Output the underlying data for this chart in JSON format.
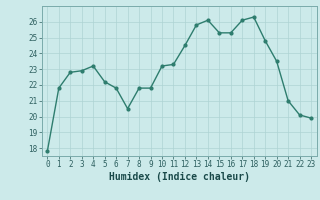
{
  "x": [
    0,
    1,
    2,
    3,
    4,
    5,
    6,
    7,
    8,
    9,
    10,
    11,
    12,
    13,
    14,
    15,
    16,
    17,
    18,
    19,
    20,
    21,
    22,
    23
  ],
  "y": [
    17.8,
    21.8,
    22.8,
    22.9,
    23.2,
    22.2,
    21.8,
    20.5,
    21.8,
    21.8,
    23.2,
    23.3,
    24.5,
    25.8,
    26.1,
    25.3,
    25.3,
    26.1,
    26.3,
    24.8,
    23.5,
    21.0,
    20.1,
    19.9
  ],
  "line_color": "#2e7d6e",
  "marker": "o",
  "marker_size": 2.0,
  "line_width": 1.0,
  "bg_color": "#cceaea",
  "grid_color": "#aed4d4",
  "xlabel": "Humidex (Indice chaleur)",
  "ylim": [
    17.5,
    27.0
  ],
  "xlim": [
    -0.5,
    23.5
  ],
  "yticks": [
    18,
    19,
    20,
    21,
    22,
    23,
    24,
    25,
    26
  ],
  "xticks": [
    0,
    1,
    2,
    3,
    4,
    5,
    6,
    7,
    8,
    9,
    10,
    11,
    12,
    13,
    14,
    15,
    16,
    17,
    18,
    19,
    20,
    21,
    22,
    23
  ],
  "tick_fontsize": 5.5,
  "xlabel_fontsize": 7.0
}
